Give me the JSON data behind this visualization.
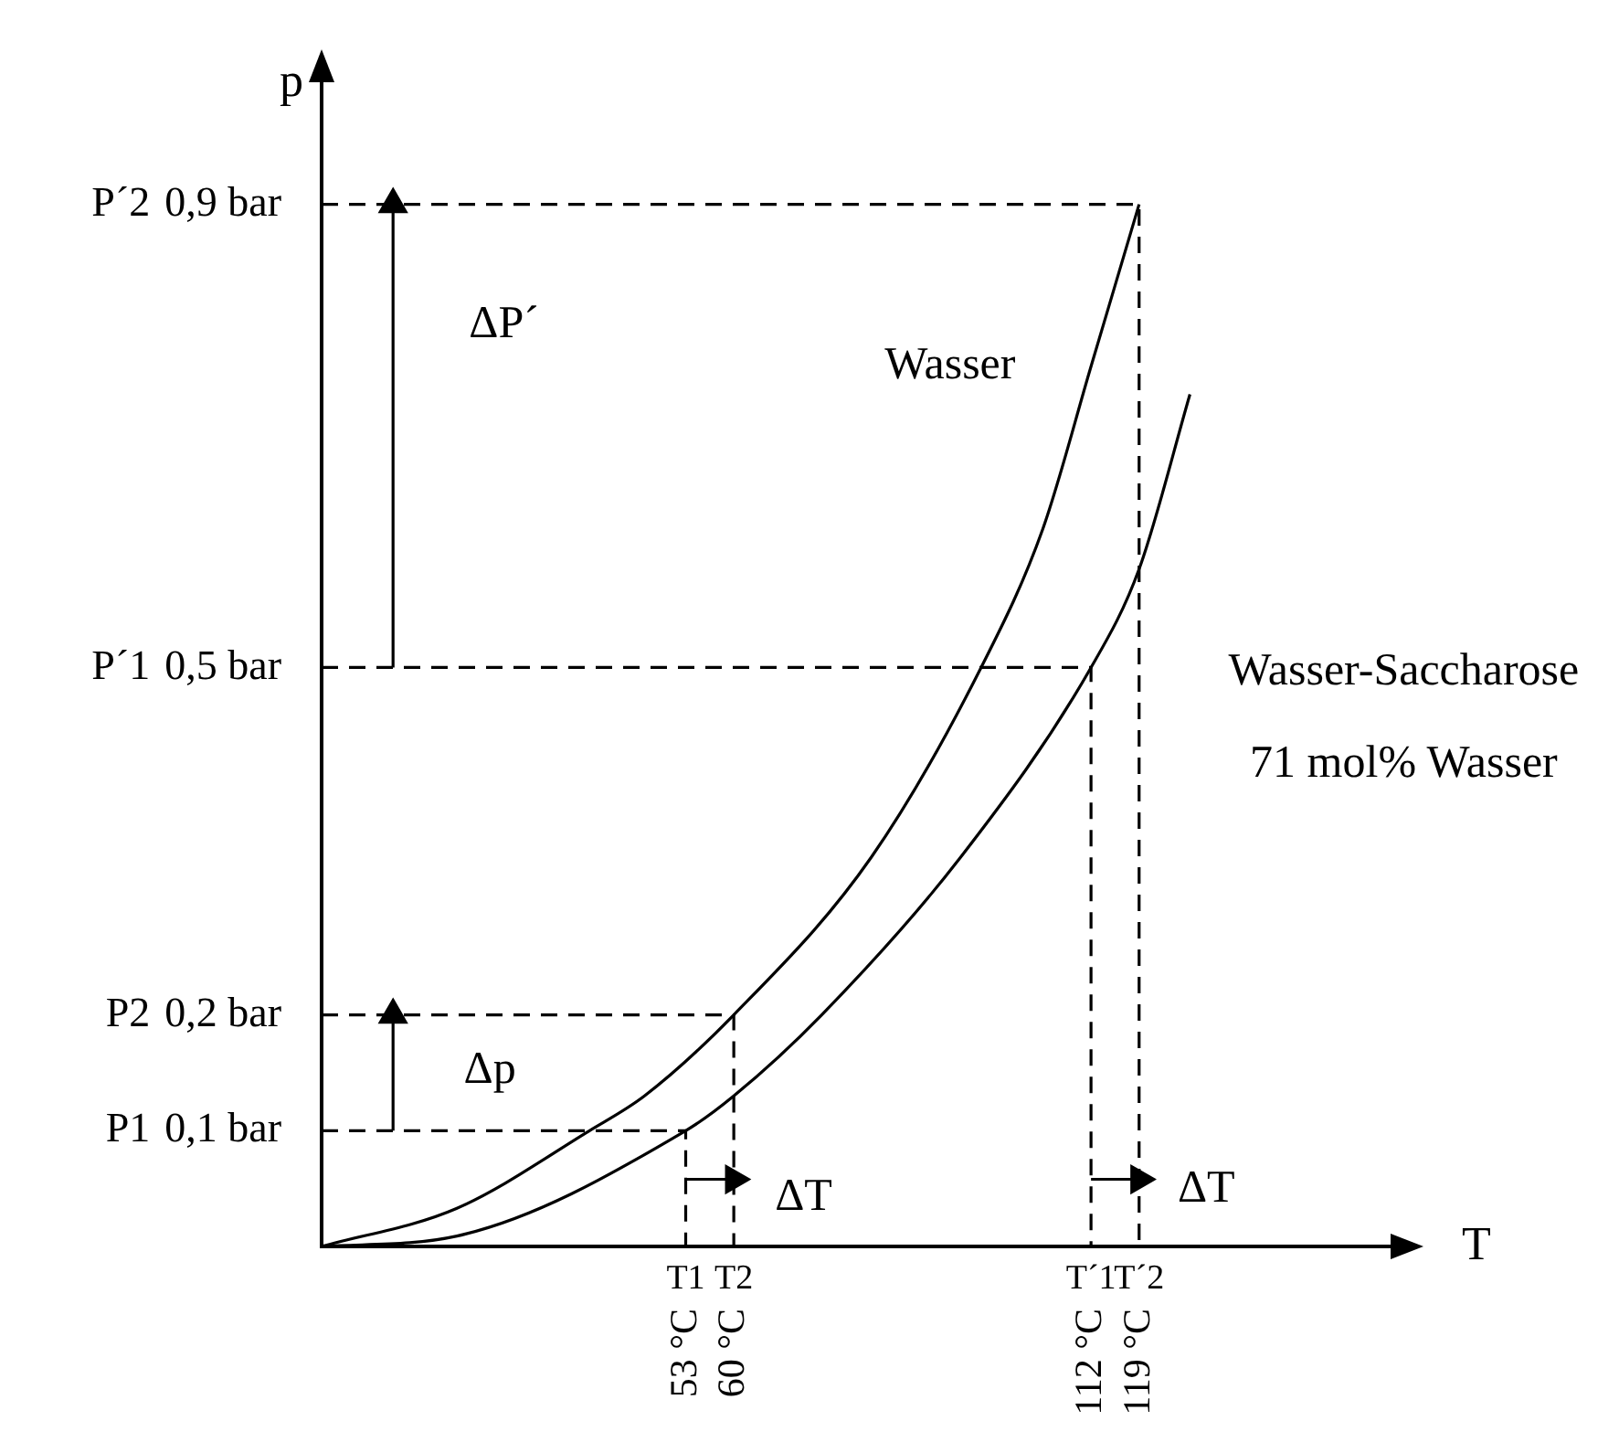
{
  "chart_data": {
    "type": "line",
    "xlabel": "T",
    "ylabel": "p",
    "xlim": [
      0,
      158
    ],
    "ylim": [
      0,
      1.02
    ],
    "xticks": [
      {
        "value": 53,
        "label": "53 °C"
      },
      {
        "value": 60,
        "label": "60 °C"
      },
      {
        "value": 112,
        "label": "112 °C"
      },
      {
        "value": 119,
        "label": "119 °C"
      }
    ],
    "yticks": [
      {
        "value": 0.1,
        "label": "0,1 bar"
      },
      {
        "value": 0.2,
        "label": "0,2 bar"
      },
      {
        "value": 0.5,
        "label": "0,5 bar"
      },
      {
        "value": 0.9,
        "label": "0,9 bar"
      }
    ],
    "grid": false,
    "legend": false,
    "series": [
      {
        "color": "#000000",
        "line_style": "solid",
        "marker": "none",
        "x": [
          0,
          19.7,
          39,
          47,
          60,
          80,
          96,
          105,
          112,
          119
        ],
        "values": [
          0,
          0.033,
          0.1,
          0.13,
          0.2,
          0.336,
          0.5,
          0.62,
          0.76,
          0.9
        ]
      },
      {
        "color": "#000000",
        "line_style": "solid",
        "marker": "none",
        "x": [
          0,
          19.7,
          53,
          60,
          72.8,
          93,
          112,
          119,
          126.4
        ],
        "values": [
          0,
          0.009,
          0.1,
          0.13,
          0.2,
          0.336,
          0.5,
          0.585,
          0.736
        ]
      },
      {
        "color": "#000000",
        "line_style": "dashed",
        "marker": "none",
        "x": [
          0,
          53,
          53
        ],
        "values": [
          0.1,
          0.1,
          0
        ]
      },
      {
        "color": "#000000",
        "line_style": "dashed",
        "marker": "none",
        "x": [
          0,
          60,
          60
        ],
        "values": [
          0.2,
          0.2,
          0
        ]
      },
      {
        "color": "#000000",
        "line_style": "dashed",
        "marker": "none",
        "x": [
          0,
          112,
          112
        ],
        "values": [
          0.5,
          0.5,
          0
        ]
      },
      {
        "color": "#000000",
        "line_style": "dashed",
        "marker": "none",
        "x": [
          0,
          119,
          119
        ],
        "values": [
          0.9,
          0.9,
          0
        ]
      },
      {
        "color": "#000000",
        "line_style": "solid",
        "marker": "triangle",
        "x": [
          10.4,
          10.4
        ],
        "values": [
          0.5,
          0.9
        ]
      },
      {
        "color": "#000000",
        "line_style": "solid",
        "marker": "triangle",
        "x": [
          10.4,
          10.4
        ],
        "values": [
          0.1,
          0.2
        ]
      },
      {
        "color": "#000000",
        "line_style": "solid",
        "marker": "triangle",
        "x": [
          53,
          60
        ],
        "values": [
          0.058,
          0.058
        ]
      },
      {
        "color": "#000000",
        "line_style": "solid",
        "marker": "triangle",
        "x": [
          112,
          119
        ],
        "values": [
          0.058,
          0.058
        ]
      }
    ],
    "annotations": [
      "P1",
      "P2",
      "P´1",
      "P´2",
      "T1",
      "T2",
      "T´1",
      "T´2",
      "ΔP´",
      "Δp",
      "ΔT",
      "ΔT",
      "Wasser",
      "Wasser-Saccharose",
      "71 mol% Wasser"
    ]
  }
}
